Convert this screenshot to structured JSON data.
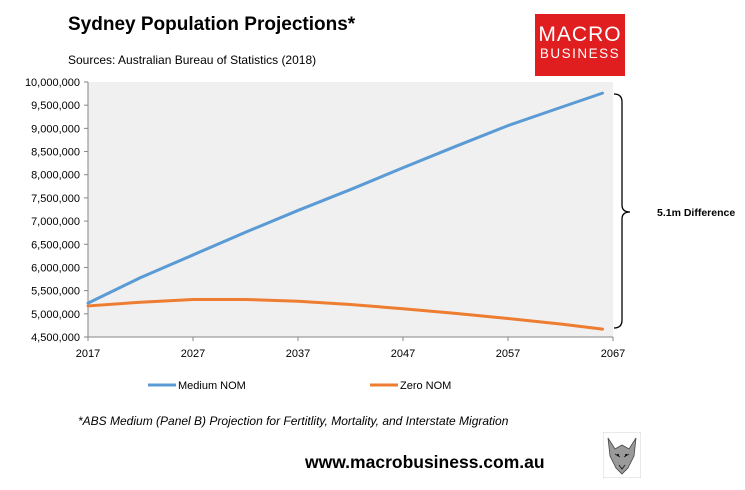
{
  "header": {
    "title": "Sydney Population Projections*",
    "source": "Sources: Australian Bureau of Statistics (2018)"
  },
  "logo": {
    "line1": "MACRO",
    "line2": "BUSINESS"
  },
  "annotation": "5.1m Difference",
  "footnote": "*ABS Medium (Panel B) Projection for Fertitlity, Mortality, and Interstate Migration",
  "url": "www.macrobusiness.com.au",
  "colors": {
    "medium": "#5b9bd5",
    "zero": "#ed7d31",
    "plot_bg": "#f0f0f0",
    "logo": "#e01d1f"
  },
  "chart_data": {
    "type": "line",
    "title": "Sydney Population Projections*",
    "xlabel": "",
    "ylabel": "",
    "xlim": [
      2017,
      2067
    ],
    "ylim": [
      4500000,
      10000000
    ],
    "xticks": [
      2017,
      2027,
      2037,
      2047,
      2057,
      2067
    ],
    "xtick_labels": [
      "2017",
      "2027",
      "2037",
      "2047",
      "2057",
      "2067"
    ],
    "yticks": [
      4500000,
      5000000,
      5500000,
      6000000,
      6500000,
      7000000,
      7500000,
      8000000,
      8500000,
      9000000,
      9500000,
      10000000
    ],
    "ytick_labels": [
      "4,500,000",
      "5,000,000",
      "5,500,000",
      "6,000,000",
      "6,500,000",
      "7,000,000",
      "7,500,000",
      "8,000,000",
      "8,500,000",
      "9,000,000",
      "9,500,000",
      "10,000,000"
    ],
    "legend": "bottom",
    "x": [
      2017,
      2022,
      2027,
      2032,
      2037,
      2042,
      2047,
      2052,
      2057,
      2062,
      2066
    ],
    "series": [
      {
        "name": "Medium NOM",
        "values": [
          5230000,
          5780000,
          6270000,
          6760000,
          7230000,
          7680000,
          8150000,
          8610000,
          9060000,
          9450000,
          9760000
        ]
      },
      {
        "name": "Zero NOM",
        "values": [
          5170000,
          5250000,
          5310000,
          5310000,
          5270000,
          5200000,
          5110000,
          5010000,
          4900000,
          4780000,
          4670000
        ]
      }
    ]
  }
}
